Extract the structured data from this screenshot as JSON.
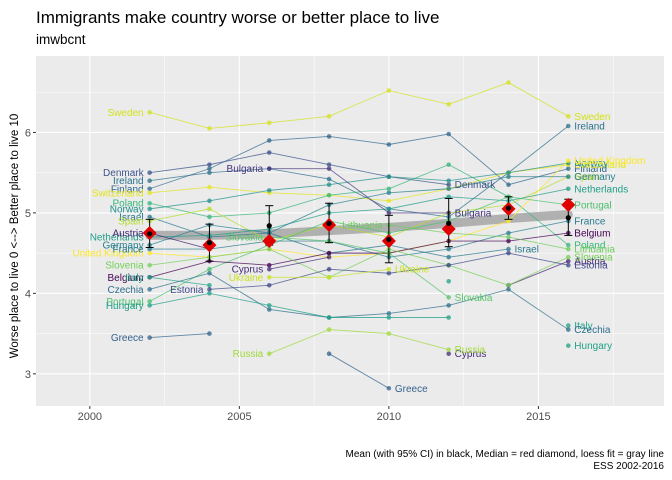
{
  "title": "Immigrants make country worse or better place to live",
  "subtitle": "imwbcnt",
  "caption_line1": "Mean (with 95% CI) in black, Median = red diamond, loess fit = gray line",
  "caption_line2": "ESS 2002-2016",
  "chart_data": {
    "type": "line",
    "title": "Immigrants make country worse or better place to live",
    "subtitle": "imwbcnt",
    "xlabel": "",
    "ylabel": "Worse place to live 0 <--> Better place to live 10",
    "xlim": [
      1998.2,
      2019.2
    ],
    "ylim": [
      2.6,
      6.95
    ],
    "x_ticks": [
      2000,
      2005,
      2010,
      2015
    ],
    "y_ticks": [
      3,
      4,
      5,
      6
    ],
    "grid": true,
    "legend": "none (direct labels)",
    "x": [
      2002,
      2004,
      2006,
      2008,
      2010,
      2012,
      2014,
      2016
    ],
    "series": [
      {
        "name": "Sweden",
        "color": "#d3e21b",
        "values": [
          6.25,
          6.05,
          6.12,
          6.2,
          6.52,
          6.35,
          6.62,
          6.2
        ]
      },
      {
        "name": "Ireland",
        "color": "#2c728e",
        "values": [
          5.4,
          5.5,
          5.55,
          5.42,
          5.05,
          4.95,
          5.5,
          6.08
        ]
      },
      {
        "name": "Denmark",
        "color": "#3b528b",
        "values": [
          5.5,
          5.6,
          5.75,
          5.6,
          5.45,
          5.35,
          null,
          null
        ]
      },
      {
        "name": "Finland",
        "color": "#31688e",
        "values": [
          5.3,
          5.55,
          5.9,
          5.95,
          5.85,
          5.98,
          5.35,
          5.55
        ]
      },
      {
        "name": "Switzerland",
        "color": "#e3e418",
        "values": [
          5.25,
          5.32,
          5.25,
          5.22,
          5.15,
          5.3,
          5.5,
          5.6
        ]
      },
      {
        "name": "Norway",
        "color": "#21918c",
        "values": [
          5.05,
          5.15,
          5.28,
          5.35,
          5.45,
          5.4,
          5.5,
          5.62
        ]
      },
      {
        "name": "Israel",
        "color": "#2a788e",
        "values": [
          4.95,
          4.7,
          4.75,
          4.5,
          4.6,
          4.45,
          4.55,
          null
        ]
      },
      {
        "name": "Poland",
        "color": "#35b779",
        "values": [
          5.12,
          4.95,
          5.0,
          5.22,
          5.3,
          5.6,
          5.2,
          4.6
        ]
      },
      {
        "name": "Spain",
        "color": "#b5de2b",
        "values": [
          4.9,
          5.05,
          4.65,
          4.85,
          4.7,
          5.0,
          5.1,
          5.45
        ]
      },
      {
        "name": "United Kingdom",
        "color": "#fde725",
        "values": [
          4.5,
          4.45,
          4.55,
          4.45,
          4.5,
          4.65,
          4.9,
          5.65
        ]
      },
      {
        "name": "Netherlands",
        "color": "#1f9e89",
        "values": [
          4.7,
          4.72,
          4.8,
          5.0,
          5.05,
          5.2,
          5.15,
          5.3
        ]
      },
      {
        "name": "Germany",
        "color": "#27808e",
        "values": [
          4.6,
          4.85,
          4.75,
          5.1,
          5.25,
          5.3,
          5.45,
          5.45
        ]
      },
      {
        "name": "Portugal",
        "color": "#4ac16d",
        "values": [
          3.9,
          4.3,
          4.6,
          4.9,
          4.75,
          4.9,
          5.2,
          5.1
        ]
      },
      {
        "name": "France",
        "color": "#287c8e",
        "values": [
          4.55,
          4.55,
          4.65,
          4.65,
          4.45,
          4.55,
          4.75,
          4.9
        ]
      },
      {
        "name": "Belgium",
        "color": "#440154",
        "values": [
          4.2,
          4.4,
          4.35,
          4.5,
          4.5,
          4.65,
          4.65,
          4.75
        ]
      },
      {
        "name": "Austria",
        "color": "#482475",
        "values": [
          4.75,
          4.55,
          null,
          null,
          null,
          null,
          4.1,
          4.4
        ]
      },
      {
        "name": "Slovenia",
        "color": "#73d055",
        "values": [
          4.35,
          4.45,
          4.55,
          4.2,
          4.55,
          4.35,
          4.1,
          4.45
        ]
      },
      {
        "name": "Italy",
        "color": "#20a387",
        "values": [
          4.2,
          4.1,
          null,
          null,
          null,
          4.15,
          null,
          3.6
        ]
      },
      {
        "name": "Czechia",
        "color": "#2d708e",
        "values": [
          4.05,
          4.25,
          3.8,
          3.7,
          3.75,
          3.85,
          4.05,
          3.55
        ]
      },
      {
        "name": "Hungary",
        "color": "#1fa187",
        "values": [
          3.85,
          4.0,
          3.85,
          3.7,
          3.7,
          3.7,
          null,
          3.35
        ]
      },
      {
        "name": "Greece",
        "color": "#33638d",
        "values": [
          3.45,
          3.5,
          null,
          3.25,
          2.82,
          null,
          null,
          null
        ]
      },
      {
        "name": "Estonia",
        "color": "#3e4989",
        "values": [
          null,
          4.05,
          4.1,
          4.3,
          4.25,
          4.35,
          4.5,
          4.35
        ]
      },
      {
        "name": "Bulgaria",
        "color": "#46337e",
        "values": [
          null,
          null,
          5.55,
          5.55,
          5.0,
          5.0,
          null,
          null
        ]
      },
      {
        "name": "Cyprus",
        "color": "#472c7a",
        "values": [
          null,
          null,
          4.3,
          4.45,
          null,
          3.25,
          null,
          null
        ]
      },
      {
        "name": "Russia",
        "color": "#a0da39",
        "values": [
          null,
          null,
          3.25,
          3.55,
          3.5,
          3.3,
          null,
          null
        ]
      },
      {
        "name": "Lithuania",
        "color": "#6ccd5a",
        "values": [
          null,
          null,
          null,
          null,
          4.85,
          4.75,
          4.7,
          4.55
        ]
      },
      {
        "name": "Ukraine",
        "color": "#cae11f",
        "values": [
          null,
          null,
          4.2,
          4.2,
          4.3,
          null,
          null,
          null
        ]
      },
      {
        "name": "Slovakia",
        "color": "#54c568",
        "values": [
          null,
          null,
          4.7,
          4.65,
          4.5,
          3.95,
          null,
          null
        ]
      }
    ],
    "mean": [
      4.74,
      4.63,
      4.84,
      4.87,
      4.67,
      4.87,
      5.06,
      4.94
    ],
    "ci_low": [
      4.57,
      4.4,
      4.6,
      4.63,
      4.38,
      4.58,
      4.92,
      4.72
    ],
    "ci_high": [
      4.92,
      4.86,
      5.09,
      5.12,
      4.97,
      5.18,
      5.2,
      5.17
    ],
    "median": [
      4.75,
      4.6,
      4.65,
      4.85,
      4.65,
      4.8,
      5.05,
      5.1
    ],
    "loess": [
      4.72,
      4.72,
      4.74,
      4.78,
      4.82,
      4.87,
      4.93,
      4.98
    ]
  }
}
